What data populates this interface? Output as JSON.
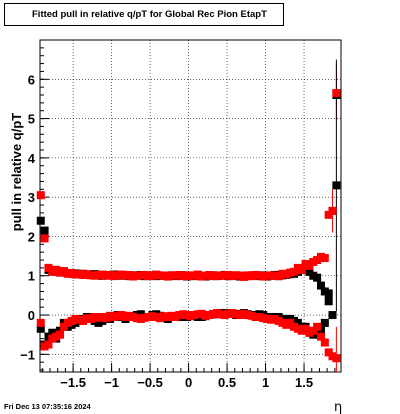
{
  "title": "Fitted pull in relative q/pT for Global Rec Pion EtapT",
  "timestamp": "Fri Dec 13 07:35:16 2024",
  "chart_data": {
    "type": "scatter",
    "xlabel": "η",
    "ylabel": "pull in relative q/pT",
    "xlim": [
      -1.93,
      1.98
    ],
    "ylim": [
      -1.45,
      7.0
    ],
    "x_ticks": [
      -1.5,
      -1,
      -0.5,
      0,
      0.5,
      1,
      1.5
    ],
    "x_tick_labels": [
      "−1.5",
      "−1",
      "−0.5",
      "0",
      "0.5",
      "1",
      "1.5"
    ],
    "y_ticks": [
      -1,
      0,
      1,
      2,
      3,
      4,
      5,
      6
    ],
    "y_tick_labels": [
      "−1",
      "0",
      "1",
      "2",
      "3",
      "4",
      "5",
      "6"
    ],
    "grid": true,
    "x": [
      -1.92,
      -1.87,
      -1.82,
      -1.77,
      -1.72,
      -1.67,
      -1.62,
      -1.57,
      -1.52,
      -1.47,
      -1.42,
      -1.37,
      -1.32,
      -1.27,
      -1.22,
      -1.17,
      -1.12,
      -1.07,
      -1.02,
      -0.97,
      -0.92,
      -0.87,
      -0.82,
      -0.77,
      -0.72,
      -0.67,
      -0.62,
      -0.57,
      -0.52,
      -0.47,
      -0.42,
      -0.37,
      -0.32,
      -0.27,
      -0.22,
      -0.17,
      -0.12,
      -0.07,
      -0.02,
      0.02,
      0.07,
      0.12,
      0.17,
      0.22,
      0.27,
      0.32,
      0.37,
      0.42,
      0.47,
      0.52,
      0.57,
      0.62,
      0.67,
      0.72,
      0.77,
      0.82,
      0.87,
      0.92,
      0.97,
      1.02,
      1.07,
      1.12,
      1.17,
      1.22,
      1.27,
      1.32,
      1.37,
      1.42,
      1.47,
      1.52,
      1.57,
      1.62,
      1.67,
      1.72,
      1.77,
      1.82,
      1.87,
      1.92
    ],
    "series": [
      {
        "marker": "square",
        "color": "#000000",
        "mean": [
          2.4,
          2.15,
          1.15,
          1.12,
          1.1,
          1.08,
          1.1,
          1.07,
          1.05,
          1.06,
          1.04,
          1.05,
          1.03,
          1.02,
          1.04,
          1.02,
          1.0,
          1.02,
          1.01,
          1.03,
          1.0,
          1.02,
          1.0,
          0.99,
          1.01,
          1.0,
          1.02,
          0.99,
          1.0,
          1.01,
          0.99,
          1.0,
          1.0,
          0.98,
          1.01,
          0.99,
          1.0,
          1.01,
          0.98,
          1.0,
          0.99,
          1.01,
          1.0,
          0.98,
          1.0,
          1.01,
          0.99,
          1.0,
          1.02,
          0.99,
          1.0,
          1.01,
          0.98,
          1.0,
          0.99,
          1.01,
          1.0,
          0.99,
          1.01,
          0.98,
          1.0,
          1.02,
          0.99,
          1.01,
          1.02,
          1.04,
          1.05,
          1.1,
          1.15,
          1.2,
          1.1,
          1.0,
          0.95,
          0.75,
          0.6,
          0.55,
          2.65,
          5.6
        ],
        "sigma": [
          -0.35,
          -0.75,
          -0.55,
          -0.45,
          -0.6,
          -0.4,
          -0.2,
          -0.3,
          -0.25,
          -0.2,
          -0.15,
          -0.1,
          -0.05,
          -0.1,
          -0.15,
          -0.2,
          -0.15,
          -0.1,
          -0.1,
          -0.05,
          0.0,
          -0.05,
          -0.1,
          -0.05,
          -0.05,
          0.0,
          0.02,
          -0.05,
          -0.05,
          0.0,
          0.02,
          -0.02,
          -0.05,
          -0.1,
          -0.05,
          -0.05,
          -0.05,
          0.0,
          -0.05,
          -0.02,
          0.0,
          -0.05,
          -0.05,
          -0.03,
          0.0,
          0.02,
          0.02,
          0.05,
          0.02,
          0.05,
          0.03,
          0.0,
          0.03,
          0.05,
          0.02,
          0.0,
          0.0,
          0.02,
          0.0,
          -0.05,
          -0.05,
          -0.05,
          -0.05,
          -0.1,
          -0.1,
          -0.1,
          -0.15,
          -0.2,
          -0.3,
          -0.3,
          -0.45,
          -0.5,
          -0.45,
          -0.4,
          -0.2,
          0.35,
          0.0,
          3.3
        ]
      },
      {
        "marker": "square",
        "color": "#ff0000",
        "mean": [
          3.05,
          1.95,
          1.2,
          1.1,
          1.15,
          1.08,
          1.12,
          1.05,
          1.07,
          1.03,
          1.05,
          1.02,
          1.04,
          1.01,
          1.0,
          1.02,
          1.03,
          1.0,
          1.02,
          0.99,
          1.01,
          1.03,
          1.0,
          1.02,
          0.98,
          1.0,
          1.01,
          1.02,
          0.99,
          1.0,
          1.03,
          1.01,
          1.0,
          0.98,
          1.01,
          1.0,
          1.02,
          0.99,
          0.99,
          1.01,
          1.0,
          1.03,
          0.98,
          1.0,
          1.02,
          0.99,
          1.0,
          1.01,
          1.0,
          1.02,
          0.99,
          1.01,
          1.0,
          0.97,
          1.01,
          0.99,
          1.02,
          1.0,
          0.98,
          1.0,
          1.01,
          1.0,
          0.99,
          1.05,
          1.03,
          1.08,
          1.1,
          1.2,
          1.15,
          1.3,
          1.25,
          1.35,
          1.4,
          1.48,
          1.45,
          2.55,
          2.65,
          5.65
        ],
        "sigma": [
          -0.2,
          -0.8,
          -0.75,
          -0.6,
          -0.55,
          -0.5,
          -0.3,
          -0.2,
          -0.15,
          -0.1,
          -0.12,
          -0.15,
          -0.08,
          -0.1,
          -0.05,
          -0.07,
          -0.05,
          -0.08,
          -0.02,
          -0.05,
          -0.03,
          0.0,
          -0.05,
          -0.02,
          -0.05,
          -0.08,
          -0.1,
          -0.07,
          -0.05,
          -0.03,
          -0.05,
          -0.08,
          -0.03,
          -0.05,
          -0.02,
          -0.05,
          0.0,
          0.02,
          0.0,
          -0.03,
          0.0,
          0.02,
          0.03,
          -0.02,
          0.0,
          0.03,
          0.05,
          0.02,
          0.0,
          0.03,
          0.05,
          0.02,
          0.0,
          0.03,
          0.0,
          -0.02,
          -0.05,
          -0.05,
          -0.08,
          -0.1,
          -0.12,
          -0.1,
          -0.15,
          -0.2,
          -0.25,
          -0.2,
          -0.3,
          -0.35,
          -0.4,
          -0.35,
          -0.45,
          -0.4,
          -0.3,
          -0.55,
          -0.7,
          -0.95,
          -1.05,
          -1.1
        ]
      }
    ],
    "error_bars": [
      {
        "series": 1,
        "x": 1.92,
        "y": 5.65,
        "err": 0.7
      },
      {
        "series": 0,
        "x": 1.92,
        "y": 3.3,
        "err": 3.2
      },
      {
        "series": 1,
        "x": 1.87,
        "y": 2.65,
        "err": 0.55
      },
      {
        "series": 1,
        "x": 1.92,
        "y": -1.1,
        "err": 0.8
      }
    ]
  }
}
